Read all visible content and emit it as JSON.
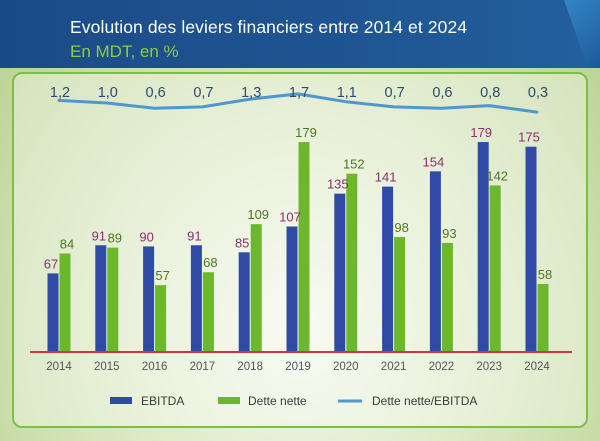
{
  "header": {
    "title": "Evolution des leviers financiers entre 2014 et 2024",
    "subtitle": "En MDT, en %"
  },
  "colors": {
    "ebitda": "#2f4ba6",
    "dette_nette": "#6cb72c",
    "ratio_line": "#4f97cf",
    "ebitda_label": "#8b2f6e",
    "dette_label": "#4a7a1e",
    "ratio_label": "#2f4a6e",
    "axis": "#d9333a",
    "header_bg": "#1f5593",
    "subtitle": "#8dcc3c"
  },
  "chart_data": {
    "type": "bar",
    "categories": [
      "2014",
      "2015",
      "2016",
      "2017",
      "2018",
      "2019",
      "2020",
      "2021",
      "2022",
      "2023",
      "2024"
    ],
    "series": [
      {
        "name": "EBITDA",
        "type": "bar",
        "values": [
          67,
          91,
          90,
          91,
          85,
          107,
          135,
          141,
          154,
          179,
          175
        ]
      },
      {
        "name": "Dette nette",
        "type": "bar",
        "values": [
          84,
          89,
          57,
          68,
          109,
          179,
          152,
          98,
          93,
          142,
          58
        ]
      },
      {
        "name": "Dette nette/EBITDA",
        "type": "line",
        "values": [
          1.2,
          1.0,
          0.6,
          0.7,
          1.3,
          1.7,
          1.1,
          0.7,
          0.6,
          0.8,
          0.3
        ],
        "labels": [
          "1,2",
          "1,0",
          "0,6",
          "0,7",
          "1,3",
          "1,7",
          "1,1",
          "0,7",
          "0,6",
          "0,8",
          "0,3"
        ]
      }
    ],
    "bar_range": [
      0,
      185
    ],
    "line_range": [
      0,
      1.7
    ],
    "legend_position": "bottom",
    "grid": false
  }
}
